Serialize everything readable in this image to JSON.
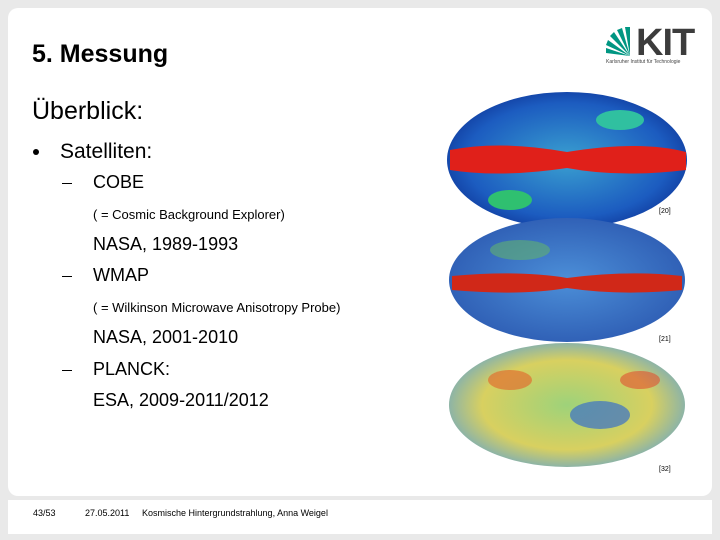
{
  "header": {
    "title": "5. Messung",
    "logo": {
      "text": "KIT",
      "subtitle": "Karlsruher Institut für Technologie"
    }
  },
  "content": {
    "heading": "Überblick:",
    "bullet": "Satelliten:",
    "items": [
      {
        "name": "COBE",
        "detail": "( = Cosmic Background Explorer)",
        "info": "NASA, 1989-1993"
      },
      {
        "name": "WMAP",
        "detail": "( = Wilkinson Microwave Anisotropy Probe)",
        "info": "NASA, 2001-2010"
      },
      {
        "name": "PLANCK:",
        "info": "ESA, 2009-2011/2012"
      }
    ]
  },
  "images": [
    {
      "ref": "[20]"
    },
    {
      "ref": "[21]"
    },
    {
      "ref": "[32]"
    }
  ],
  "footer": {
    "page": "43/53",
    "date": "27.05.2011",
    "text": "Kosmische Hintergrundstrahlung, Anna Weigel"
  }
}
